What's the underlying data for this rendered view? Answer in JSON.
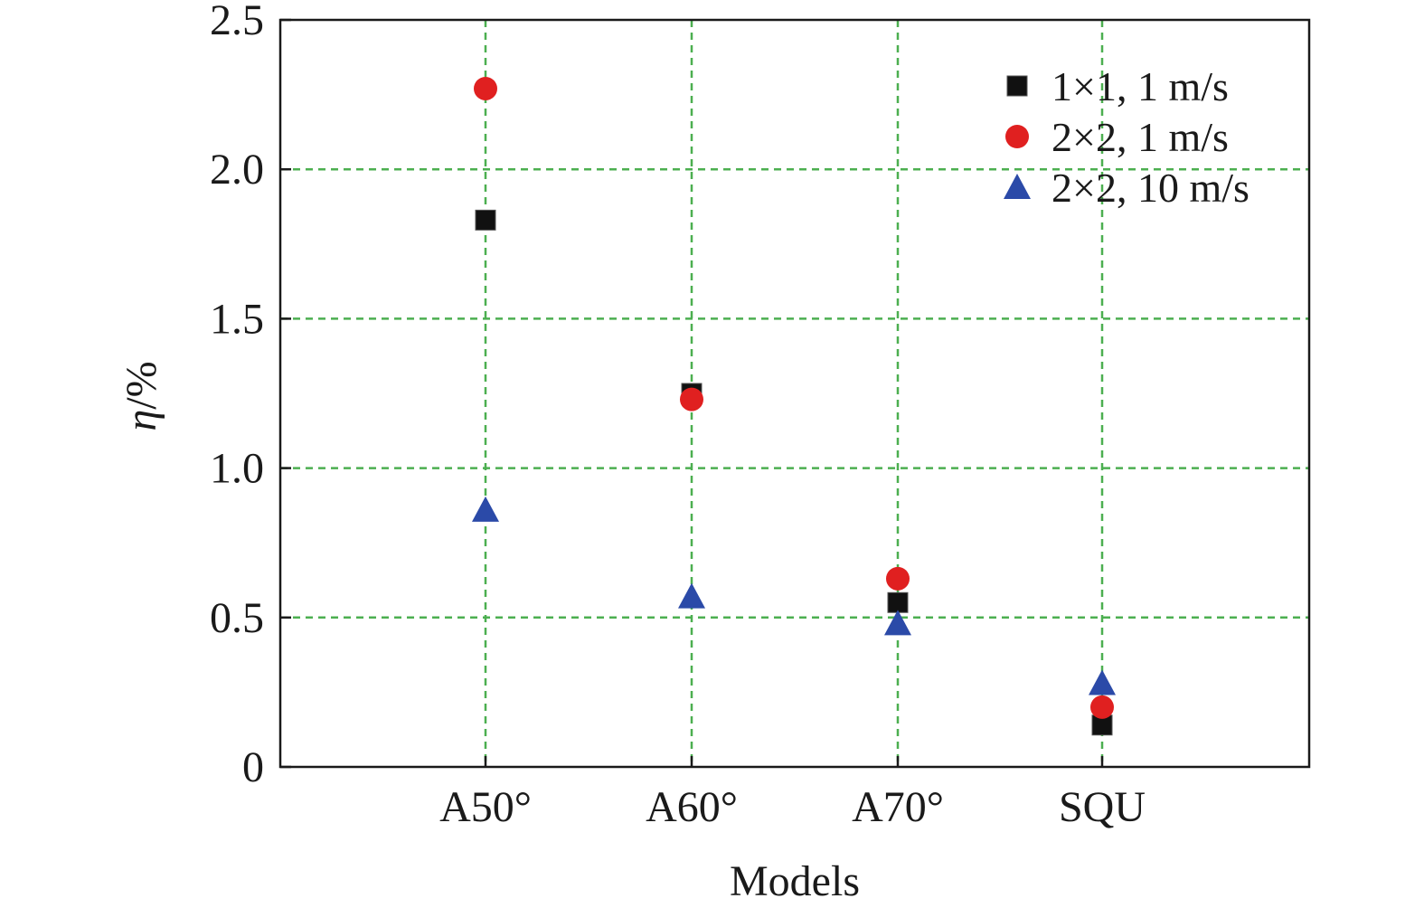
{
  "chart_data": {
    "type": "scatter",
    "xlabel": "Models",
    "ylabel_symbol": "η",
    "ylabel_unit": "/%",
    "categories": [
      "A50°",
      "A60°",
      "A70°",
      "SQU"
    ],
    "ylim": [
      0,
      2.5
    ],
    "yticks": [
      0,
      0.5,
      1.0,
      1.5,
      2.0,
      2.5
    ],
    "ytick_labels": [
      "0",
      "0.5",
      "1.0",
      "1.5",
      "2.0",
      "2.5"
    ],
    "grid": true,
    "legend_position": "top-right",
    "series": [
      {
        "name": "1×1, 1 m/s",
        "marker": "square",
        "color": "#111111",
        "values": [
          1.83,
          1.25,
          0.55,
          0.14
        ]
      },
      {
        "name": "2×2, 1 m/s",
        "marker": "circle",
        "color": "#e02020",
        "values": [
          2.27,
          1.23,
          0.63,
          0.2
        ]
      },
      {
        "name": "2×2, 10 m/s",
        "marker": "triangle",
        "color": "#2b4aa8",
        "values": [
          0.86,
          0.57,
          0.48,
          0.28
        ]
      }
    ]
  }
}
